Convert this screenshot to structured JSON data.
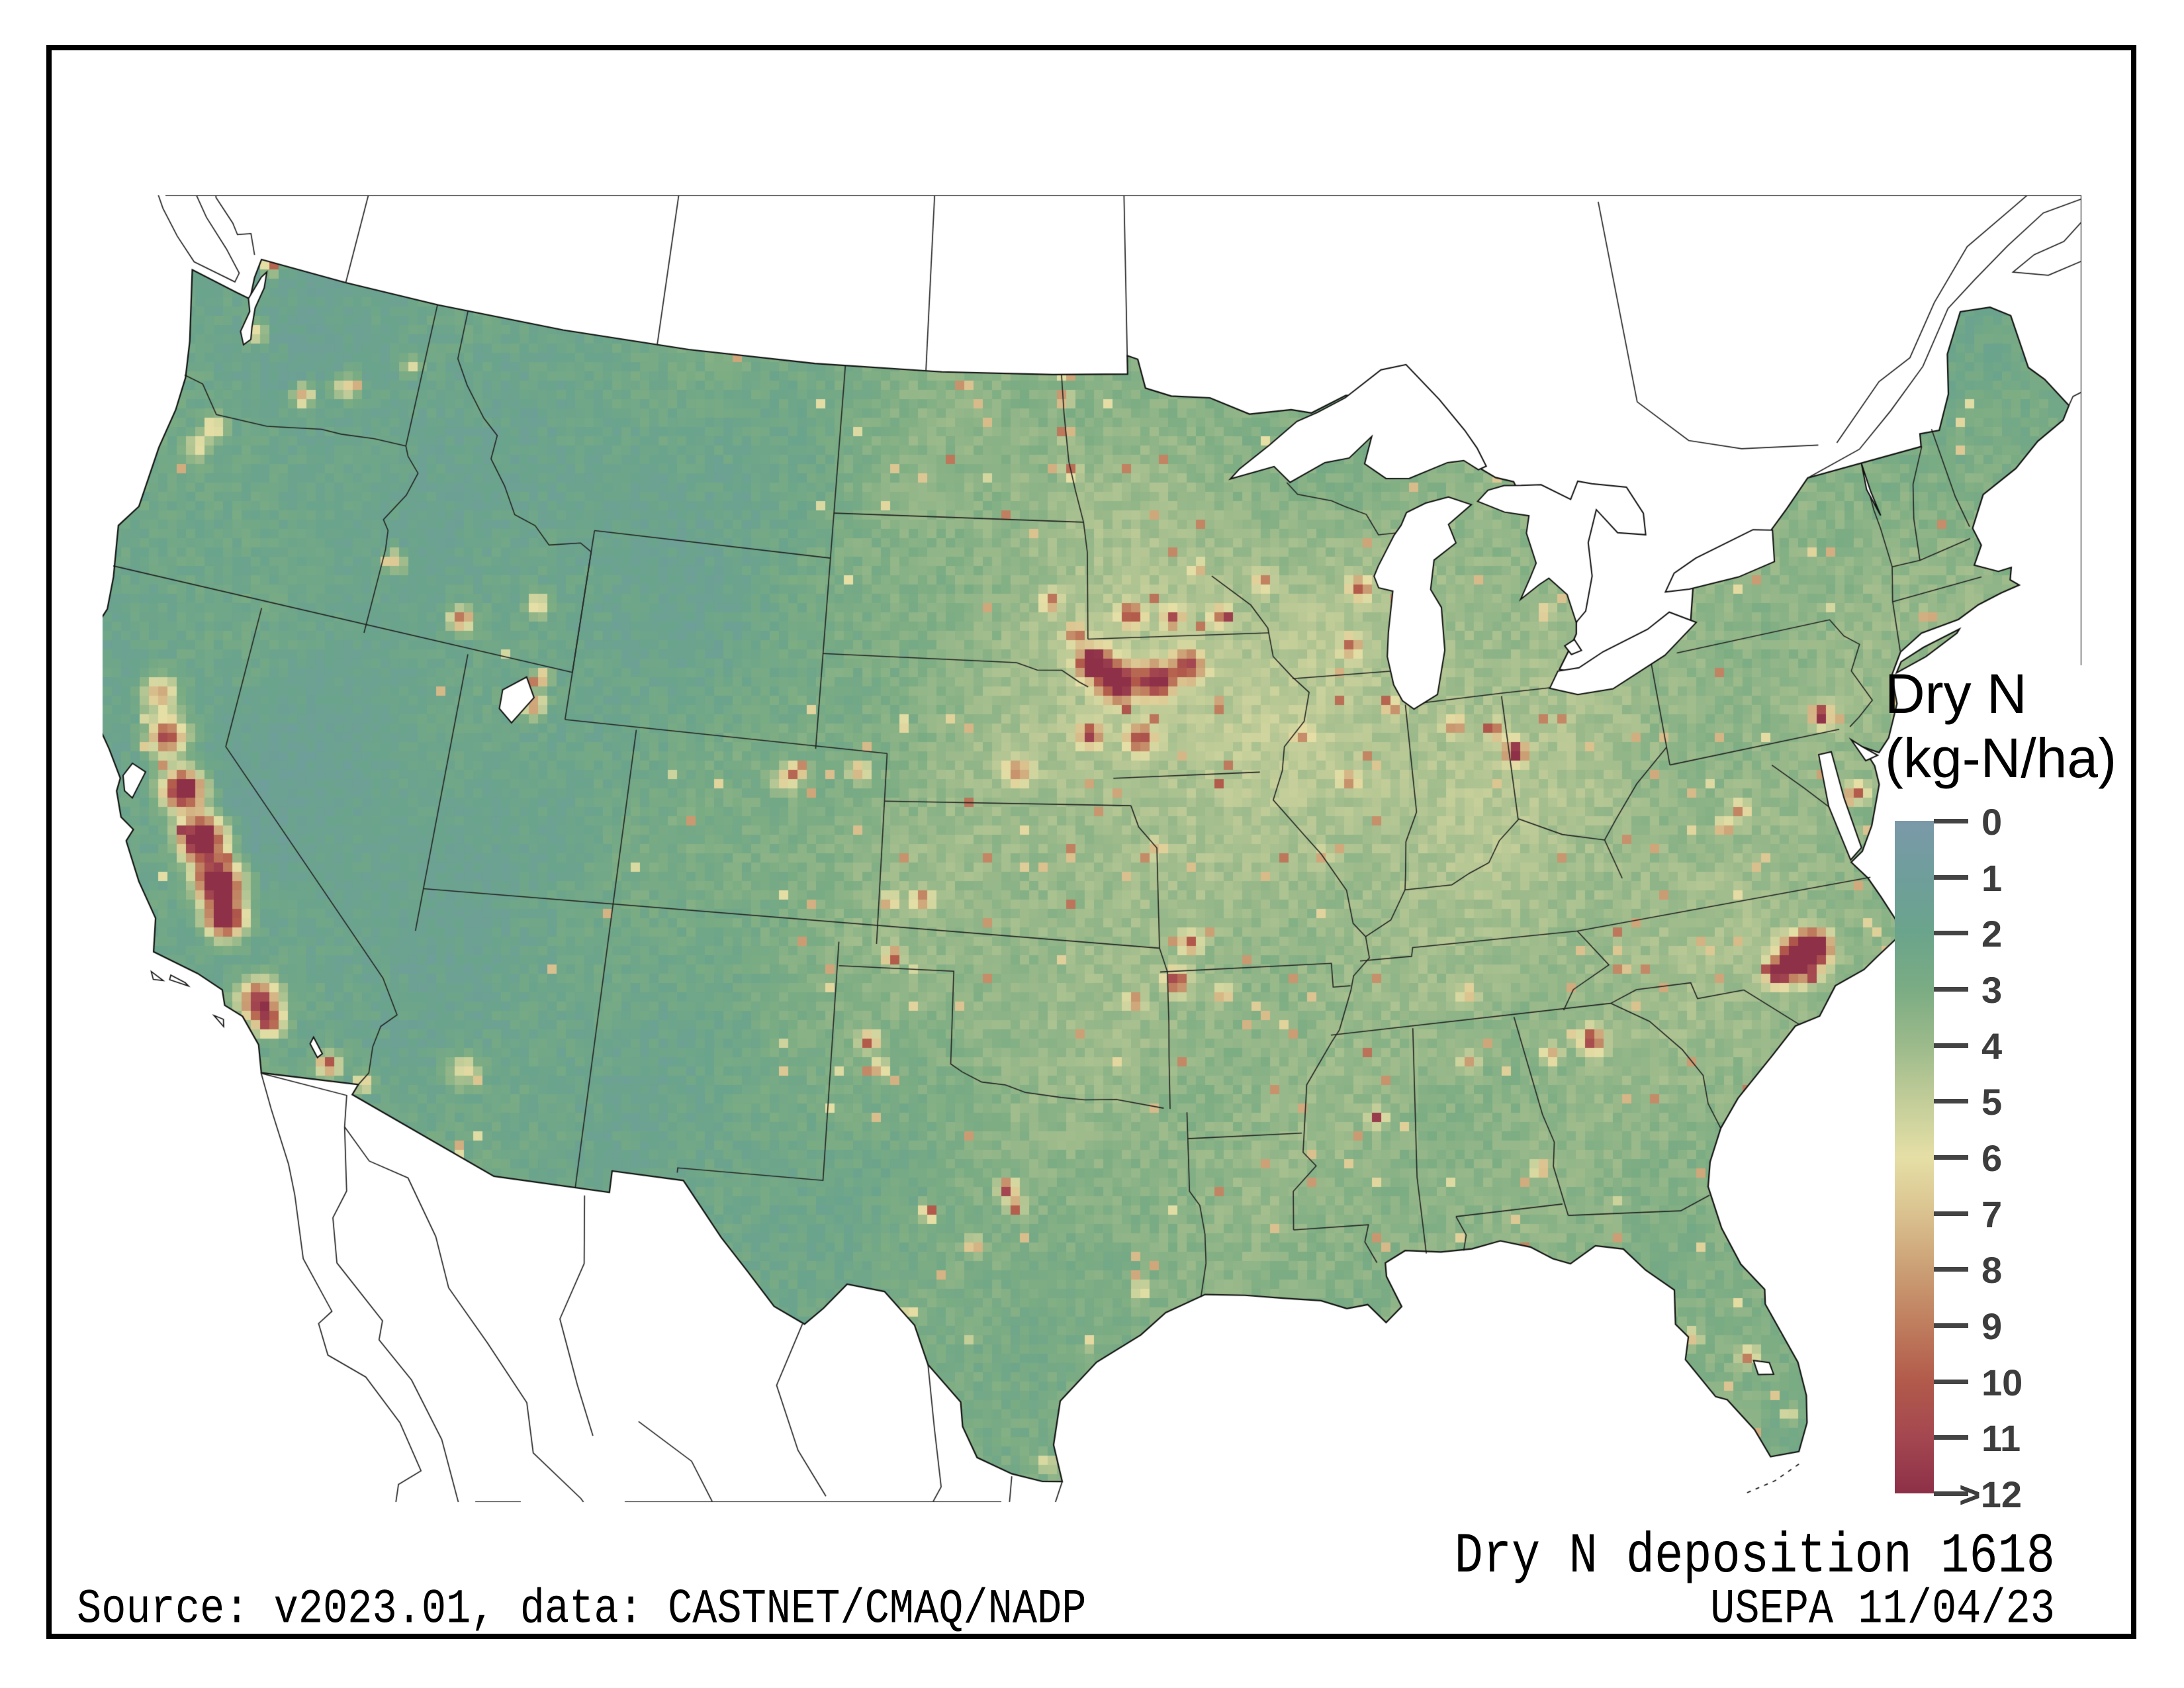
{
  "legend": {
    "title_line1": "Dry N",
    "title_line2": "(kg-N/ha)",
    "ticks": [
      "0",
      "1",
      "2",
      "3",
      "4",
      "5",
      "6",
      "7",
      "8",
      "9",
      "10",
      "11",
      ">12"
    ],
    "tick_color": "#444444",
    "label_color": "#3d3d3d",
    "colormap": [
      {
        "value": 0,
        "color": "#7b99a9"
      },
      {
        "value": 1,
        "color": "#6f9e9b"
      },
      {
        "value": 2,
        "color": "#6ba48c"
      },
      {
        "value": 3,
        "color": "#7bac83"
      },
      {
        "value": 4,
        "color": "#9cba8b"
      },
      {
        "value": 5,
        "color": "#c2cd99"
      },
      {
        "value": 6,
        "color": "#e5dfa6"
      },
      {
        "value": 7,
        "color": "#dac28f"
      },
      {
        "value": 8,
        "color": "#cb9f75"
      },
      {
        "value": 9,
        "color": "#bf7d5e"
      },
      {
        "value": 10,
        "color": "#b25a4b"
      },
      {
        "value": 11,
        "color": "#a44750"
      },
      {
        "value": 12,
        "color": "#8d3048"
      }
    ]
  },
  "annotations": {
    "map_title": "Dry N deposition 1618",
    "credit": "USEPA 11/04/23",
    "source": "Source: v2023.01, data: CASTNET/CMAQ/NADP"
  },
  "map": {
    "units": "kg-N/ha",
    "stroke_coast": "#111111",
    "stroke_states": "#222222",
    "stroke_foreign": "#222222",
    "base_points": [
      {
        "lon": -123.5,
        "lat": 47.8,
        "v": 2.2
      },
      {
        "lon": -120.3,
        "lat": 47.5,
        "v": 1.3
      },
      {
        "lon": -122.8,
        "lat": 45.3,
        "v": 3.2
      },
      {
        "lon": -118.5,
        "lat": 44.0,
        "v": 1.2
      },
      {
        "lon": -121.5,
        "lat": 40.6,
        "v": 2.6
      },
      {
        "lon": -119.5,
        "lat": 38.5,
        "v": 1.1
      },
      {
        "lon": -116.8,
        "lat": 39.5,
        "v": 1.0
      },
      {
        "lon": -113.5,
        "lat": 38.0,
        "v": 1.3
      },
      {
        "lon": -111.5,
        "lat": 39.8,
        "v": 1.8
      },
      {
        "lon": -110.0,
        "lat": 45.5,
        "v": 1.1
      },
      {
        "lon": -107.0,
        "lat": 43.0,
        "v": 0.9
      },
      {
        "lon": -105.0,
        "lat": 47.0,
        "v": 1.4
      },
      {
        "lon": -101.0,
        "lat": 47.0,
        "v": 3.3
      },
      {
        "lon": -97.5,
        "lat": 46.3,
        "v": 4.2
      },
      {
        "lon": -100.0,
        "lat": 44.0,
        "v": 3.4
      },
      {
        "lon": -98.0,
        "lat": 41.5,
        "v": 4.8
      },
      {
        "lon": -96.0,
        "lat": 41.0,
        "v": 6.0
      },
      {
        "lon": -100.5,
        "lat": 38.5,
        "v": 4.0
      },
      {
        "lon": -97.0,
        "lat": 38.0,
        "v": 4.6
      },
      {
        "lon": -98.5,
        "lat": 35.3,
        "v": 4.0
      },
      {
        "lon": -101.0,
        "lat": 33.0,
        "v": 3.0
      },
      {
        "lon": -104.5,
        "lat": 32.0,
        "v": 1.8
      },
      {
        "lon": -108.0,
        "lat": 34.0,
        "v": 1.7
      },
      {
        "lon": -112.5,
        "lat": 33.5,
        "v": 2.0
      },
      {
        "lon": -106.0,
        "lat": 31.8,
        "v": 2.0
      },
      {
        "lon": -99.0,
        "lat": 30.8,
        "v": 3.2
      },
      {
        "lon": -96.5,
        "lat": 28.5,
        "v": 3.0
      },
      {
        "lon": -98.8,
        "lat": 27.0,
        "v": 2.8
      },
      {
        "lon": -95.0,
        "lat": 31.5,
        "v": 3.4
      },
      {
        "lon": -93.0,
        "lat": 32.5,
        "v": 3.6
      },
      {
        "lon": -91.8,
        "lat": 30.5,
        "v": 3.3
      },
      {
        "lon": -90.8,
        "lat": 29.5,
        "v": 2.6
      },
      {
        "lon": -94.0,
        "lat": 39.0,
        "v": 4.4
      },
      {
        "lon": -92.8,
        "lat": 41.8,
        "v": 6.0
      },
      {
        "lon": -93.8,
        "lat": 43.8,
        "v": 5.2
      },
      {
        "lon": -91.0,
        "lat": 44.8,
        "v": 4.4
      },
      {
        "lon": -89.3,
        "lat": 40.2,
        "v": 5.2
      },
      {
        "lon": -88.8,
        "lat": 43.5,
        "v": 5.0
      },
      {
        "lon": -86.5,
        "lat": 39.8,
        "v": 5.2
      },
      {
        "lon": -84.8,
        "lat": 42.8,
        "v": 4.4
      },
      {
        "lon": -83.0,
        "lat": 40.3,
        "v": 4.8
      },
      {
        "lon": -86.0,
        "lat": 36.5,
        "v": 4.0
      },
      {
        "lon": -84.5,
        "lat": 37.8,
        "v": 4.2
      },
      {
        "lon": -88.5,
        "lat": 36.0,
        "v": 4.2
      },
      {
        "lon": -90.5,
        "lat": 33.5,
        "v": 3.7
      },
      {
        "lon": -87.0,
        "lat": 32.5,
        "v": 3.8
      },
      {
        "lon": -83.5,
        "lat": 32.8,
        "v": 3.9
      },
      {
        "lon": -81.5,
        "lat": 34.2,
        "v": 3.6
      },
      {
        "lon": -79.5,
        "lat": 35.6,
        "v": 4.4
      },
      {
        "lon": -78.0,
        "lat": 37.5,
        "v": 3.7
      },
      {
        "lon": -80.5,
        "lat": 38.7,
        "v": 3.5
      },
      {
        "lon": -77.8,
        "lat": 40.8,
        "v": 4.2
      },
      {
        "lon": -75.5,
        "lat": 43.0,
        "v": 3.4
      },
      {
        "lon": -71.5,
        "lat": 44.0,
        "v": 2.6
      },
      {
        "lon": -69.0,
        "lat": 46.5,
        "v": 2.0
      },
      {
        "lon": -68.5,
        "lat": 44.8,
        "v": 2.4
      },
      {
        "lon": -72.5,
        "lat": 41.8,
        "v": 3.8
      },
      {
        "lon": -74.5,
        "lat": 39.8,
        "v": 4.0
      },
      {
        "lon": -81.5,
        "lat": 28.3,
        "v": 3.0
      },
      {
        "lon": -80.9,
        "lat": 25.4,
        "v": 2.4
      },
      {
        "lon": -82.0,
        "lat": 30.0,
        "v": 3.3
      },
      {
        "lon": -87.5,
        "lat": 46.6,
        "v": 2.2
      },
      {
        "lon": -91.5,
        "lat": 47.4,
        "v": 2.4
      },
      {
        "lon": -102.5,
        "lat": 31.5,
        "v": 2.3
      },
      {
        "lon": -104.8,
        "lat": 30.2,
        "v": 1.9
      },
      {
        "lon": -115.0,
        "lat": 36.0,
        "v": 1.6
      },
      {
        "lon": -116.0,
        "lat": 34.5,
        "v": 2.2
      },
      {
        "lon": -120.5,
        "lat": 35.8,
        "v": 2.6
      }
    ],
    "hotspots": [
      {
        "name": "central-valley-n",
        "lon": -122.1,
        "lat": 39.7,
        "amp": 6,
        "r": 18
      },
      {
        "name": "sacramento-valley",
        "lon": -121.6,
        "lat": 38.9,
        "amp": 9,
        "r": 20
      },
      {
        "name": "san-joaquin-1",
        "lon": -120.8,
        "lat": 37.9,
        "amp": 12,
        "r": 22
      },
      {
        "name": "san-joaquin-2",
        "lon": -120.0,
        "lat": 37.0,
        "amp": 13,
        "r": 24
      },
      {
        "name": "fresno-tulare",
        "lon": -119.3,
        "lat": 36.2,
        "amp": 13,
        "r": 24
      },
      {
        "name": "bakersfield",
        "lon": -118.9,
        "lat": 35.5,
        "amp": 12,
        "r": 20
      },
      {
        "name": "la-basin",
        "lon": -117.6,
        "lat": 34.0,
        "amp": 9,
        "r": 22
      },
      {
        "name": "inland-empire",
        "lon": -117.2,
        "lat": 33.6,
        "amp": 7,
        "r": 14
      },
      {
        "name": "imperial-valley",
        "lon": -115.55,
        "lat": 33.0,
        "amp": 8,
        "r": 12
      },
      {
        "name": "yuma",
        "lon": -114.6,
        "lat": 32.75,
        "amp": 6,
        "r": 9
      },
      {
        "name": "phoenix",
        "lon": -112.2,
        "lat": 33.4,
        "amp": 4,
        "r": 16
      },
      {
        "name": "salt-lake",
        "lon": -112.0,
        "lat": 41.2,
        "amp": 6,
        "r": 13
      },
      {
        "name": "cache-valley",
        "lon": -111.85,
        "lat": 41.8,
        "amp": 6,
        "r": 9
      },
      {
        "name": "boise",
        "lon": -116.6,
        "lat": 43.6,
        "amp": 5,
        "r": 11
      },
      {
        "name": "magic-valley",
        "lon": -114.4,
        "lat": 42.7,
        "amp": 7,
        "r": 13
      },
      {
        "name": "idaho-falls",
        "lon": -112.3,
        "lat": 43.3,
        "amp": 5,
        "r": 12
      },
      {
        "name": "yakima",
        "lon": -120.4,
        "lat": 46.5,
        "amp": 6,
        "r": 11
      },
      {
        "name": "columbia-basin",
        "lon": -119.2,
        "lat": 46.9,
        "amp": 5,
        "r": 13
      },
      {
        "name": "seattle",
        "lon": -122.3,
        "lat": 47.5,
        "amp": 5,
        "r": 11
      },
      {
        "name": "portland",
        "lon": -122.7,
        "lat": 45.4,
        "amp": 5,
        "r": 11
      },
      {
        "name": "willamette",
        "lon": -123.0,
        "lat": 44.9,
        "amp": 4,
        "r": 12
      },
      {
        "name": "abbotsford-border",
        "lon": -122.4,
        "lat": 48.95,
        "amp": 9,
        "r": 8
      },
      {
        "name": "spokane",
        "lon": -117.4,
        "lat": 47.65,
        "amp": 3.5,
        "r": 9
      },
      {
        "name": "front-range",
        "lon": -104.8,
        "lat": 40.3,
        "amp": 4.5,
        "r": 12
      },
      {
        "name": "greeley",
        "lon": -104.5,
        "lat": 40.5,
        "amp": 6,
        "r": 9
      },
      {
        "name": "ne-colorado",
        "lon": -102.8,
        "lat": 40.6,
        "amp": 5,
        "r": 10
      },
      {
        "name": "red-river-1",
        "lon": -96.95,
        "lat": 47.0,
        "amp": 7,
        "r": 7
      },
      {
        "name": "red-river-2",
        "lon": -97.1,
        "lat": 47.8,
        "amp": 10,
        "r": 6
      },
      {
        "name": "red-river-3",
        "lon": -97.15,
        "lat": 48.5,
        "amp": 11,
        "r": 6
      },
      {
        "name": "red-river-4",
        "lon": -97.05,
        "lat": 49.0,
        "amp": 8,
        "r": 6
      },
      {
        "name": "sioux-falls",
        "lon": -96.8,
        "lat": 43.6,
        "amp": 6,
        "r": 10
      },
      {
        "name": "east-sd",
        "lon": -97.5,
        "lat": 44.3,
        "amp": 5,
        "r": 10
      },
      {
        "name": "nw-iowa-core",
        "lon": -96.3,
        "lat": 43.0,
        "amp": 11,
        "r": 16
      },
      {
        "name": "sioux-city",
        "lon": -95.6,
        "lat": 42.6,
        "amp": 10,
        "r": 20
      },
      {
        "name": "carroll-ia",
        "lon": -94.5,
        "lat": 42.6,
        "amp": 9,
        "r": 18
      },
      {
        "name": "n-central-ia",
        "lon": -93.6,
        "lat": 42.9,
        "amp": 7,
        "r": 16
      },
      {
        "name": "sw-iowa",
        "lon": -95.0,
        "lat": 41.4,
        "amp": 7,
        "r": 14
      },
      {
        "name": "e-nebraska",
        "lon": -96.4,
        "lat": 41.5,
        "amp": 7,
        "r": 12
      },
      {
        "name": "c-nebraska",
        "lon": -98.4,
        "lat": 40.7,
        "amp": 5,
        "r": 14
      },
      {
        "name": "sw-minnesota",
        "lon": -95.2,
        "lat": 44.0,
        "amp": 7,
        "r": 12
      },
      {
        "name": "s-minnesota",
        "lon": -94.0,
        "lat": 43.9,
        "amp": 6,
        "r": 10
      },
      {
        "name": "se-minnesota",
        "lon": -92.6,
        "lat": 43.9,
        "amp": 5,
        "r": 10
      },
      {
        "name": "w-wisconsin",
        "lon": -91.3,
        "lat": 44.6,
        "amp": 4.5,
        "r": 10
      },
      {
        "name": "green-bay",
        "lon": -88.5,
        "lat": 44.3,
        "amp": 6,
        "r": 11
      },
      {
        "name": "se-wisconsin",
        "lon": -88.9,
        "lat": 43.1,
        "amp": 5,
        "r": 10
      },
      {
        "name": "c-illinois",
        "lon": -89.3,
        "lat": 40.3,
        "amp": 4,
        "r": 10
      },
      {
        "name": "nw-illinois",
        "lon": -90.5,
        "lat": 41.3,
        "amp": 4,
        "r": 9
      },
      {
        "name": "n-indiana",
        "lon": -86.2,
        "lat": 41.2,
        "amp": 5,
        "r": 10
      },
      {
        "name": "mercer-ohio",
        "lon": -84.65,
        "lat": 40.5,
        "amp": 9,
        "r": 11
      },
      {
        "name": "fort-wayne",
        "lon": -85.1,
        "lat": 41.0,
        "amp": 5,
        "r": 9
      },
      {
        "name": "michigan-thumb",
        "lon": -83.3,
        "lat": 43.3,
        "amp": 4,
        "r": 8
      },
      {
        "name": "lancaster-pa",
        "lon": -76.2,
        "lat": 40.1,
        "amp": 9,
        "r": 11
      },
      {
        "name": "shenandoah",
        "lon": -78.9,
        "lat": 38.5,
        "amp": 5,
        "r": 9
      },
      {
        "name": "hardy-wv",
        "lon": -79.4,
        "lat": 38.2,
        "amp": 6,
        "r": 8
      },
      {
        "name": "delmarva",
        "lon": -75.7,
        "lat": 38.35,
        "amp": 6,
        "r": 9
      },
      {
        "name": "nc-coastal-plain",
        "lon": -78.2,
        "lat": 35.2,
        "amp": 13,
        "r": 20
      },
      {
        "name": "duplin-sampson",
        "lon": -77.7,
        "lat": 35.4,
        "amp": 12,
        "r": 16
      },
      {
        "name": "s-nc",
        "lon": -78.8,
        "lat": 35.0,
        "amp": 8,
        "r": 12
      },
      {
        "name": "n-georgia",
        "lon": -83.7,
        "lat": 34.3,
        "amp": 8,
        "r": 12
      },
      {
        "name": "gainesville-ga",
        "lon": -84.8,
        "lat": 34.1,
        "amp": 5,
        "r": 9
      },
      {
        "name": "n-alabama",
        "lon": -86.9,
        "lat": 34.2,
        "amp": 5,
        "r": 9
      },
      {
        "name": "wiregrass-al",
        "lon": -85.4,
        "lat": 31.8,
        "amp": 5,
        "r": 9
      },
      {
        "name": "c-mississippi",
        "lon": -89.3,
        "lat": 33.2,
        "amp": 5,
        "r": 9
      },
      {
        "name": "c-tennessee",
        "lon": -86.7,
        "lat": 35.6,
        "amp": 4,
        "r": 9
      },
      {
        "name": "nw-arkansas",
        "lon": -94.2,
        "lat": 36.3,
        "amp": 8,
        "r": 12
      },
      {
        "name": "n-arkansas",
        "lon": -93.0,
        "lat": 36.0,
        "amp": 5,
        "r": 9
      },
      {
        "name": "e-oklahoma",
        "lon": -95.3,
        "lat": 35.9,
        "amp": 5,
        "r": 9
      },
      {
        "name": "sw-missouri",
        "lon": -93.8,
        "lat": 37.1,
        "amp": 6,
        "r": 10
      },
      {
        "name": "garden-city-ks",
        "lon": -100.9,
        "lat": 38.0,
        "amp": 6,
        "r": 10
      },
      {
        "name": "sw-kansas",
        "lon": -101.8,
        "lat": 37.9,
        "amp": 5,
        "r": 8
      },
      {
        "name": "guymon-ok",
        "lon": -101.6,
        "lat": 36.75,
        "amp": 7,
        "r": 9
      },
      {
        "name": "tx-panhandle-1",
        "lon": -102.1,
        "lat": 34.95,
        "amp": 7,
        "r": 10
      },
      {
        "name": "tx-panhandle-2",
        "lon": -101.8,
        "lat": 34.4,
        "amp": 6,
        "r": 8
      },
      {
        "name": "erath-tx",
        "lon": -98.5,
        "lat": 32.0,
        "amp": 9,
        "r": 9
      },
      {
        "name": "hamilton-tx",
        "lon": -98.3,
        "lat": 31.6,
        "amp": 8,
        "r": 8
      },
      {
        "name": "san-angelo",
        "lon": -100.4,
        "lat": 31.45,
        "amp": 9,
        "r": 8
      },
      {
        "name": "hill-country",
        "lon": -99.3,
        "lat": 30.8,
        "amp": 6,
        "r": 8
      },
      {
        "name": "uvalde",
        "lon": -100.8,
        "lat": 29.35,
        "amp": 8,
        "r": 5
      },
      {
        "name": "s-texas-gulf",
        "lon": -97.5,
        "lat": 26.3,
        "amp": 5,
        "r": 7
      },
      {
        "name": "corpus",
        "lon": -96.5,
        "lat": 28.8,
        "amp": 6,
        "r": 5
      },
      {
        "name": "houston",
        "lon": -95.3,
        "lat": 29.9,
        "amp": 4,
        "r": 9
      },
      {
        "name": "okeechobee-dairies",
        "lon": -81.2,
        "lat": 27.3,
        "amp": 6,
        "r": 9
      },
      {
        "name": "miami",
        "lon": -80.5,
        "lat": 26.0,
        "amp": 4,
        "r": 7
      },
      {
        "name": "tampa",
        "lon": -82.4,
        "lat": 27.9,
        "amp": 4,
        "r": 8
      },
      {
        "name": "chicago",
        "lon": -87.9,
        "lat": 41.7,
        "amp": 4,
        "r": 8
      },
      {
        "name": "twin-cities",
        "lon": -93.2,
        "lat": 44.9,
        "amp": 4,
        "r": 8
      },
      {
        "name": "st-louis",
        "lon": -90.2,
        "lat": 38.7,
        "amp": 4,
        "r": 8
      },
      {
        "name": "kansas-city",
        "lon": -94.6,
        "lat": 39.1,
        "amp": 4,
        "r": 8
      }
    ]
  }
}
